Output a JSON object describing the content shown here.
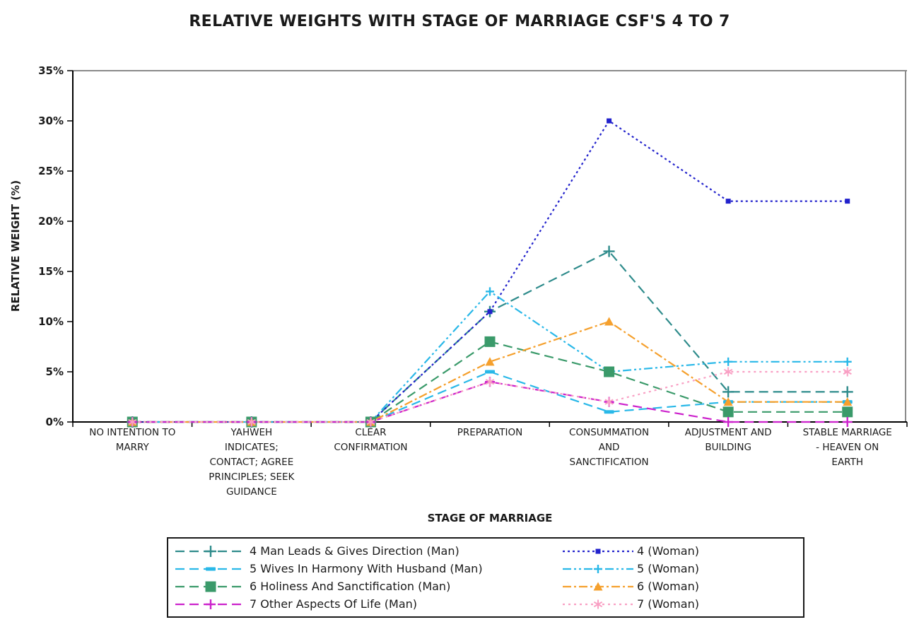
{
  "title": "RELATIVE WEIGHTS WITH STAGE OF MARRIAGE CSF'S 4 TO 7",
  "chart_data": {
    "type": "line",
    "title": "RELATIVE WEIGHTS WITH STAGE OF MARRIAGE CSF'S 4 TO 7",
    "xlabel": "STAGE OF MARRIAGE",
    "ylabel": "RELATIVE WEIGHT (%)",
    "ylim": [
      0,
      35
    ],
    "ytick_step": 5,
    "ytick_labels": [
      "0%",
      "5%",
      "10%",
      "15%",
      "20%",
      "25%",
      "30%",
      "35%"
    ],
    "grid": false,
    "legend_position": "bottom",
    "categories": [
      "NO INTENTION TO MARRY",
      "YAHWEH INDICATES; CONTACT; AGREE PRINCIPLES; SEEK GUIDANCE",
      "CLEAR CONFIRMATION",
      "PREPARATION",
      "CONSUMMATION AND SANCTIFICATION",
      "ADJUSTMENT AND BUILDING",
      "STABLE MARRIAGE - HEAVEN ON EARTH"
    ],
    "category_label_lines": [
      [
        "NO INTENTION TO",
        "MARRY"
      ],
      [
        "YAHWEH",
        "INDICATES;",
        "CONTACT; AGREE",
        "PRINCIPLES; SEEK",
        "GUIDANCE"
      ],
      [
        "CLEAR",
        "CONFIRMATION"
      ],
      [
        "PREPARATION"
      ],
      [
        "CONSUMMATION",
        "AND",
        "SANCTIFICATION"
      ],
      [
        "ADJUSTMENT AND",
        "BUILDING"
      ],
      [
        "STABLE MARRIAGE",
        "- HEAVEN ON",
        "EARTH"
      ]
    ],
    "series": [
      {
        "key": "csf4-man",
        "name": "4 Man Leads & Gives Direction (Man)",
        "color": "#2E8B8B",
        "dash": "13 7",
        "marker": "plus",
        "marker_size": 16,
        "values": [
          0,
          0,
          0,
          11,
          17,
          3,
          3
        ]
      },
      {
        "key": "csf4-woman",
        "name": "4 (Woman)",
        "color": "#2222CC",
        "dash": "3 4",
        "marker": "square",
        "marker_size": 7,
        "values": [
          0,
          0,
          0,
          11,
          30,
          22,
          22
        ]
      },
      {
        "key": "csf5-man",
        "name": "5 Wives In Harmony With Husband (Man)",
        "color": "#29B8E8",
        "dash": "13 7",
        "marker": "hbar",
        "marker_size": 14,
        "values": [
          0,
          0,
          0,
          5,
          1,
          2,
          2
        ]
      },
      {
        "key": "csf5-woman",
        "name": "5 (Woman)",
        "color": "#29B8E8",
        "dash": "12 4 3 4 3 4",
        "marker": "plus",
        "marker_size": 12,
        "values": [
          0,
          0,
          0,
          13,
          5,
          6,
          6
        ]
      },
      {
        "key": "csf6-man",
        "name": "6 Holiness And Sanctification (Man)",
        "color": "#3A9A6A",
        "dash": "13 7",
        "marker": "square",
        "marker_size": 15,
        "values": [
          0,
          0,
          0,
          8,
          5,
          1,
          1
        ]
      },
      {
        "key": "csf6-woman",
        "name": "6 (Woman)",
        "color": "#F5A02D",
        "dash": "12 4 3 4",
        "marker": "triangle",
        "marker_size": 13,
        "values": [
          0,
          0,
          0,
          6,
          10,
          2,
          2
        ]
      },
      {
        "key": "csf7-man",
        "name": "7 Other Aspects Of Life (Man)",
        "color": "#CC22CC",
        "dash": "13 7",
        "marker": "plus",
        "marker_size": 14,
        "values": [
          0,
          0,
          0,
          4,
          2,
          0,
          0
        ]
      },
      {
        "key": "csf7-woman",
        "name": "7 (Woman)",
        "color": "#F9A0C4",
        "dash": "3 5",
        "marker": "star",
        "marker_size": 13,
        "values": [
          0,
          0,
          0,
          4,
          2,
          5,
          5
        ]
      }
    ]
  }
}
